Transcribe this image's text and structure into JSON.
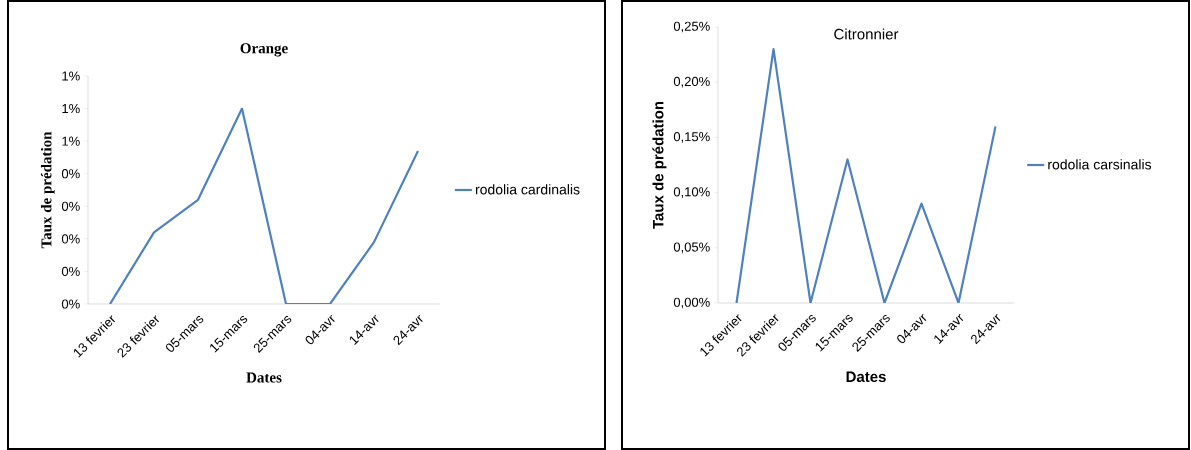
{
  "chart_data": [
    {
      "type": "line",
      "title": "Orange",
      "xlabel": "Dates",
      "ylabel": "Taux de prédation",
      "categories": [
        "13 fevrier",
        "23 fevrier",
        "05-mars",
        "15-mars",
        "25-mars",
        "04-avr",
        "14-avr",
        "24-avr"
      ],
      "series": [
        {
          "name": "rodolia cardinalis",
          "color": "#4f81bd",
          "values": [
            0,
            0.22,
            0.32,
            0.6,
            0,
            0,
            0.19,
            0.47
          ]
        }
      ],
      "ylim": [
        0,
        0.7
      ],
      "yticks": [
        {
          "value": 0,
          "label": "0%"
        },
        {
          "value": 0.1,
          "label": "0%"
        },
        {
          "value": 0.2,
          "label": "0%"
        },
        {
          "value": 0.3,
          "label": "0%"
        },
        {
          "value": 0.4,
          "label": "0%"
        },
        {
          "value": 0.5,
          "label": "1%"
        },
        {
          "value": 0.6,
          "label": "1%"
        },
        {
          "value": 0.7,
          "label": "1%"
        }
      ],
      "legend": "right",
      "grid": false,
      "marker": "none",
      "line_style": "solid"
    },
    {
      "type": "line",
      "title": "Citronnier",
      "xlabel": "Dates",
      "ylabel": "Taux de prédation",
      "categories": [
        "13 fevrier",
        "23 fevrier",
        "05-mars",
        "15-mars",
        "25-mars",
        "04-avr",
        "14-avr",
        "24-avr"
      ],
      "series": [
        {
          "name": "rodolia carsinalis",
          "color": "#4f81bd",
          "values": [
            0,
            0.23,
            0,
            0.13,
            0,
            0.09,
            0,
            0.16
          ]
        }
      ],
      "ylim": [
        0,
        0.25
      ],
      "yticks": [
        {
          "value": 0,
          "label": "0,00%"
        },
        {
          "value": 0.05,
          "label": "0,05%"
        },
        {
          "value": 0.1,
          "label": "0,10%"
        },
        {
          "value": 0.15,
          "label": "0,15%"
        },
        {
          "value": 0.2,
          "label": "0,20%"
        },
        {
          "value": 0.25,
          "label": "0,25%"
        }
      ],
      "legend": "right",
      "grid": false,
      "marker": "none",
      "line_style": "solid"
    }
  ]
}
